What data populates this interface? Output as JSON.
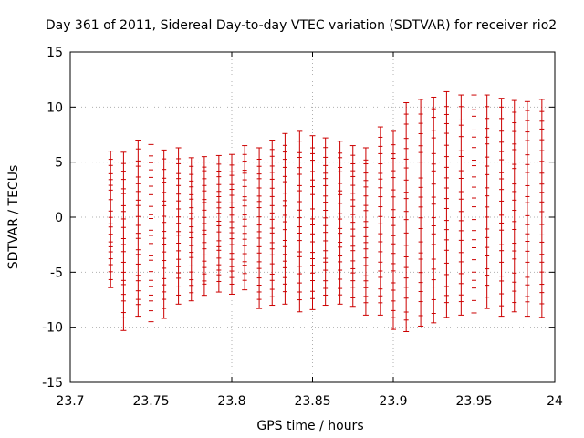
{
  "chart_data": {
    "type": "scatter",
    "title": "Day 361 of 2011, Sidereal Day-to-day VTEC variation (SDTVAR) for receiver rio2",
    "xlabel": "GPS time / hours",
    "ylabel": "SDTVAR / TECUs",
    "xlim": [
      23.7,
      24.0
    ],
    "ylim": [
      -15,
      15
    ],
    "xticks": [
      23.7,
      23.75,
      23.8,
      23.85,
      23.9,
      23.95,
      24.0
    ],
    "xtick_labels": [
      "23.7",
      "23.75",
      "23.8",
      "23.85",
      "23.9",
      "23.95",
      "24"
    ],
    "yticks": [
      -15,
      -10,
      -5,
      0,
      5,
      10,
      15
    ],
    "ytick_labels": [
      "-15",
      "-10",
      "-5",
      "0",
      "5",
      "10",
      "15"
    ],
    "grid": true,
    "color": "#cc0000",
    "series": [
      {
        "x": 23.725,
        "low": -6.4,
        "high": 6.0
      },
      {
        "x": 23.733,
        "low": -10.3,
        "high": 5.9
      },
      {
        "x": 23.742,
        "low": -9.0,
        "high": 7.0
      },
      {
        "x": 23.75,
        "low": -9.5,
        "high": 6.6
      },
      {
        "x": 23.758,
        "low": -9.2,
        "high": 6.1
      },
      {
        "x": 23.767,
        "low": -7.9,
        "high": 6.3
      },
      {
        "x": 23.775,
        "low": -7.6,
        "high": 5.4
      },
      {
        "x": 23.783,
        "low": -7.1,
        "high": 5.5
      },
      {
        "x": 23.792,
        "low": -6.8,
        "high": 5.6
      },
      {
        "x": 23.8,
        "low": -7.0,
        "high": 5.7
      },
      {
        "x": 23.808,
        "low": -6.6,
        "high": 6.5
      },
      {
        "x": 23.817,
        "low": -8.3,
        "high": 6.3
      },
      {
        "x": 23.825,
        "low": -8.0,
        "high": 7.0
      },
      {
        "x": 23.833,
        "low": -7.9,
        "high": 7.6
      },
      {
        "x": 23.842,
        "low": -8.6,
        "high": 7.8
      },
      {
        "x": 23.85,
        "low": -8.4,
        "high": 7.4
      },
      {
        "x": 23.858,
        "low": -8.0,
        "high": 7.2
      },
      {
        "x": 23.867,
        "low": -7.9,
        "high": 6.9
      },
      {
        "x": 23.875,
        "low": -8.1,
        "high": 6.5
      },
      {
        "x": 23.883,
        "low": -8.9,
        "high": 6.3
      },
      {
        "x": 23.892,
        "low": -8.9,
        "high": 8.2
      },
      {
        "x": 23.9,
        "low": -10.2,
        "high": 7.8
      },
      {
        "x": 23.908,
        "low": -10.4,
        "high": 10.4
      },
      {
        "x": 23.917,
        "low": -9.9,
        "high": 10.7
      },
      {
        "x": 23.925,
        "low": -9.6,
        "high": 10.9
      },
      {
        "x": 23.933,
        "low": -9.1,
        "high": 11.4
      },
      {
        "x": 23.942,
        "low": -8.9,
        "high": 11.1
      },
      {
        "x": 23.95,
        "low": -8.7,
        "high": 11.1
      },
      {
        "x": 23.958,
        "low": -8.3,
        "high": 11.1
      },
      {
        "x": 23.967,
        "low": -9.0,
        "high": 10.8
      },
      {
        "x": 23.975,
        "low": -8.6,
        "high": 10.6
      },
      {
        "x": 23.983,
        "low": -9.0,
        "high": 10.5
      },
      {
        "x": 23.992,
        "low": -9.1,
        "high": 10.7
      }
    ]
  }
}
